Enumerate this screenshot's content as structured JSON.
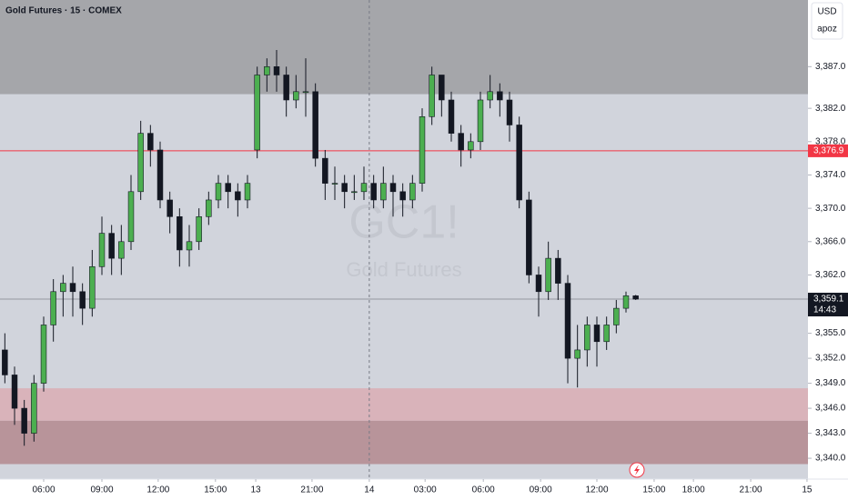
{
  "chart_data": {
    "type": "candlestick",
    "title": "Gold Futures · 15 · COMEX",
    "watermark": "GC1!",
    "watermark_subtitle": "Gold Futures",
    "currency": "USD",
    "scale_mode": "apoz",
    "up_color": "#4caf50",
    "down_color": "#131722",
    "x": [
      1,
      3,
      5,
      7,
      9,
      11,
      13,
      15,
      17,
      19,
      21,
      23,
      25,
      27,
      29,
      31,
      33,
      35,
      37,
      39,
      41,
      43,
      45,
      47,
      49,
      51,
      53,
      55,
      57,
      59,
      61,
      63,
      65,
      67,
      69,
      71,
      73,
      75,
      77,
      79,
      81,
      83,
      85,
      87,
      89,
      91,
      93,
      95,
      97,
      99,
      101,
      103,
      105,
      107,
      109,
      111,
      113,
      115,
      117,
      119,
      121,
      123,
      125,
      127,
      129,
      131
    ],
    "open": [
      3353,
      3350,
      3346,
      3343,
      3349,
      3356,
      3360,
      3361,
      3360,
      3358,
      3363,
      3367,
      3364,
      3366,
      3372,
      3379,
      3377,
      3371,
      3369,
      3365,
      3366,
      3369,
      3371,
      3373,
      3372,
      3371,
      3377,
      3386,
      3387,
      3386,
      3383,
      3384,
      3384,
      3376,
      3373,
      3373,
      3372,
      3372,
      3373,
      3371,
      3373,
      3372,
      3371,
      3373,
      3381,
      3386,
      3383,
      3379,
      3377,
      3378,
      3383,
      3384,
      3383,
      3380,
      3371,
      3362,
      3360,
      3364,
      3361,
      3352,
      3353,
      3356,
      3354,
      3356,
      3358,
      3359.5
    ],
    "high": [
      3355,
      3351,
      3347,
      3350,
      3357,
      3361.5,
      3362,
      3363,
      3361,
      3365,
      3369,
      3368,
      3368,
      3374,
      3380.5,
      3380,
      3378,
      3372,
      3370,
      3368,
      3370,
      3372,
      3374,
      3374,
      3373,
      3374,
      3387,
      3388,
      3389,
      3387,
      3386,
      3388,
      3385,
      3377,
      3375,
      3374,
      3374,
      3375,
      3374,
      3375,
      3374,
      3373,
      3374,
      3382,
      3387,
      3386,
      3384,
      3380,
      3379,
      3384,
      3386,
      3385,
      3384,
      3381,
      3372,
      3363,
      3366,
      3365,
      3362,
      3356,
      3357,
      3357,
      3357,
      3359,
      3360,
      3359.6
    ],
    "low": [
      3349,
      3344,
      3341.5,
      3342,
      3348,
      3354,
      3357,
      3357,
      3356,
      3357,
      3362,
      3362,
      3362,
      3365,
      3371,
      3375,
      3370,
      3367,
      3363,
      3363,
      3365,
      3368,
      3370,
      3370,
      3369,
      3370,
      3376,
      3384,
      3384,
      3381,
      3382,
      3381,
      3375,
      3371,
      3371,
      3370,
      3371,
      3371,
      3370,
      3370,
      3369,
      3369,
      3370,
      3372,
      3380,
      3381,
      3378,
      3375,
      3376,
      3377,
      3382,
      3381,
      3378,
      3370,
      3361,
      3357,
      3359,
      3359,
      3349,
      3348.5,
      3351,
      3351,
      3353,
      3355,
      3357.5,
      3359
    ],
    "close": [
      3350,
      3346,
      3343,
      3349,
      3356,
      3360,
      3361,
      3360,
      3358,
      3363,
      3367,
      3364,
      3366,
      3372,
      3379,
      3377,
      3371,
      3369,
      3365,
      3366,
      3369,
      3371,
      3373,
      3372,
      3371,
      3373,
      3386,
      3387,
      3386,
      3383,
      3384,
      3384,
      3376,
      3373,
      3373,
      3372,
      3372,
      3373,
      3371,
      3373,
      3372,
      3371,
      3373,
      3381,
      3386,
      3383,
      3379,
      3377,
      3378,
      3383,
      3384,
      3383,
      3380,
      3371,
      3362,
      3360,
      3364,
      3361,
      3352,
      3353,
      3356,
      3354,
      3356,
      3358,
      3359.5,
      3359.1
    ],
    "xlim": [
      0,
      166.5
    ],
    "xticks": [
      {
        "value": 9,
        "label": "06:00"
      },
      {
        "value": 21,
        "label": "09:00"
      },
      {
        "value": 32.6,
        "label": "12:00"
      },
      {
        "value": 44.4,
        "label": "15:00"
      },
      {
        "value": 52.7,
        "label": "13"
      },
      {
        "value": 64.3,
        "label": "21:00"
      },
      {
        "value": 76.1,
        "label": "14"
      },
      {
        "value": 87.6,
        "label": "03:00"
      },
      {
        "value": 99.6,
        "label": "06:00"
      },
      {
        "value": 111.4,
        "label": "09:00"
      },
      {
        "value": 123,
        "label": "12:00"
      },
      {
        "value": 134.8,
        "label": "15:00"
      },
      {
        "value": 142.9,
        "label": "18:00"
      },
      {
        "value": 154.7,
        "label": "21:00"
      },
      {
        "value": 166.3,
        "label": "15"
      }
    ],
    "ylim": [
      3337.5,
      3395
    ],
    "yticks": [
      {
        "value": 3387,
        "label": "3,387.0"
      },
      {
        "value": 3382,
        "label": "3,382.0"
      },
      {
        "value": 3378,
        "label": "3,378.0"
      },
      {
        "value": 3374,
        "label": "3,374.0"
      },
      {
        "value": 3370,
        "label": "3,370.0"
      },
      {
        "value": 3366,
        "label": "3,366.0"
      },
      {
        "value": 3362,
        "label": "3,362.0"
      },
      {
        "value": 3355,
        "label": "3,355.0"
      },
      {
        "value": 3352,
        "label": "3,352.0"
      },
      {
        "value": 3349,
        "label": "3,349.0"
      },
      {
        "value": 3346,
        "label": "3,346.0"
      },
      {
        "value": 3343,
        "label": "3,343.0"
      },
      {
        "value": 3340,
        "label": "3,340.0"
      }
    ],
    "zones": [
      {
        "from": 3383.7,
        "to": 3395,
        "color": "#a5a6aa"
      },
      {
        "from": 3344.5,
        "to": 3348.4,
        "color": "#d9b3ba"
      },
      {
        "from": 3339.3,
        "to": 3344.5,
        "color": "#b8949a"
      }
    ],
    "levels": [
      {
        "value": 3376.9,
        "label": "3,376.9",
        "color": "#f23645"
      }
    ],
    "last_price": {
      "value": 3359.1,
      "label": "3,359.1",
      "countdown": "14:43",
      "color": "#131722"
    },
    "crosshair_x": 76.1
  }
}
